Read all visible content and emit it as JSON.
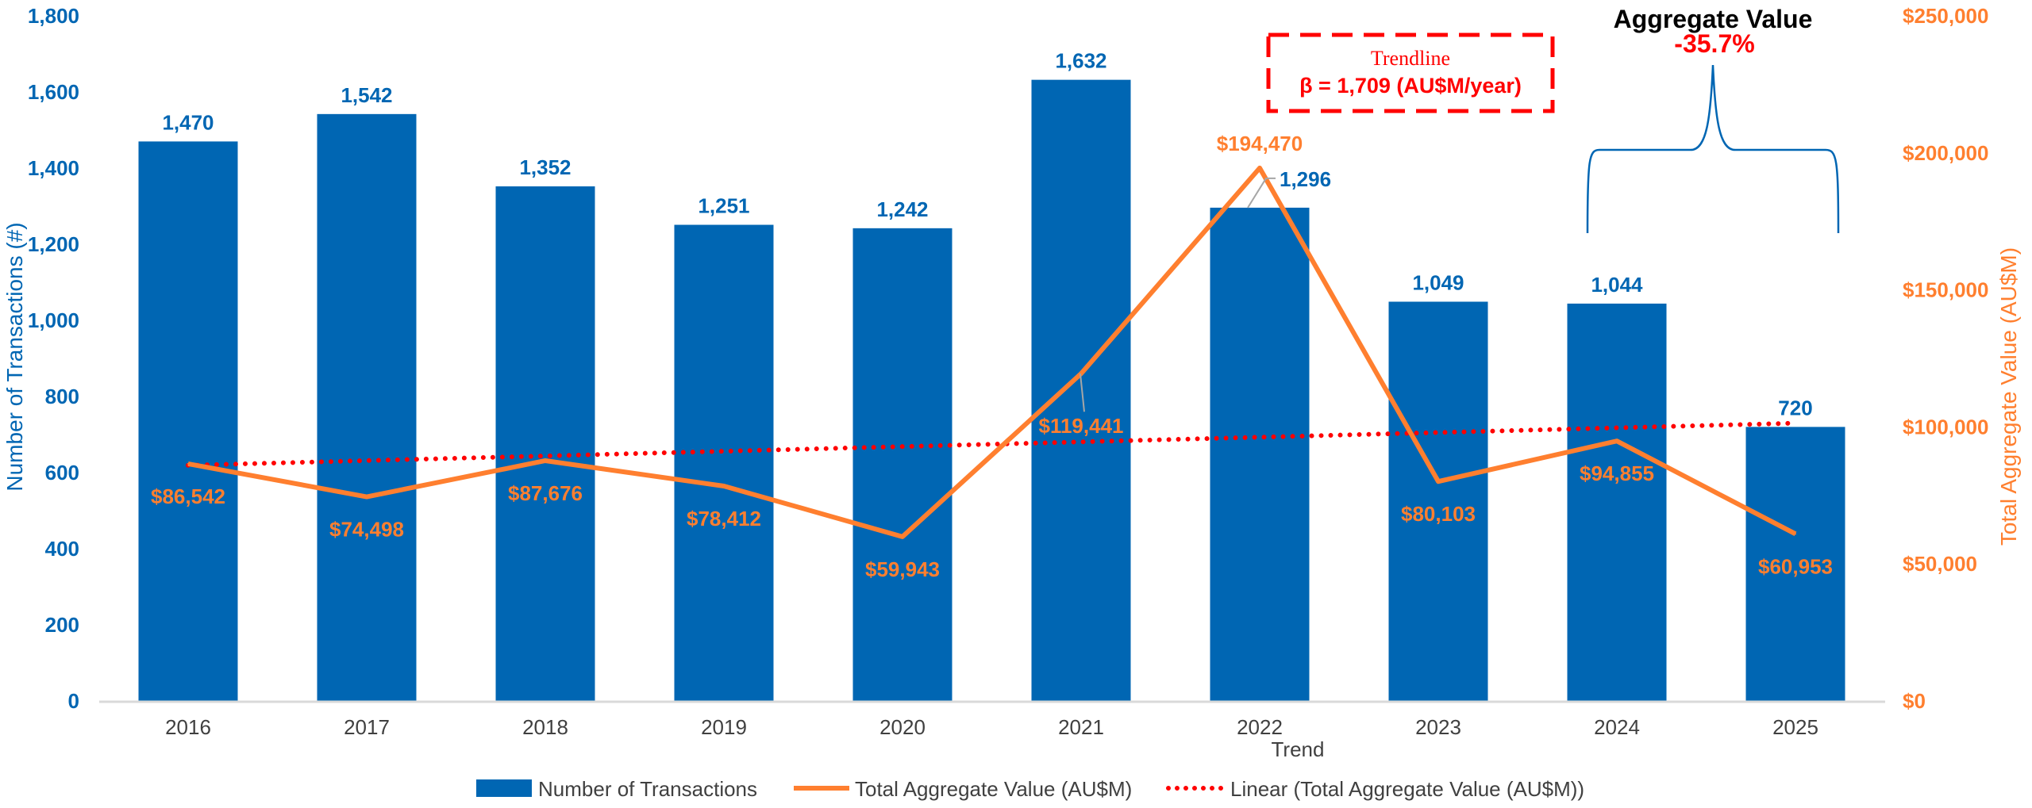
{
  "chart_data": {
    "type": "bar+line",
    "categories": [
      "2016",
      "2017",
      "2018",
      "2019",
      "2020",
      "2021",
      "2022",
      "2023",
      "2024",
      "2025"
    ],
    "series": [
      {
        "name": "Number of Transactions",
        "type": "bar",
        "axis": "left",
        "values": [
          1470,
          1542,
          1352,
          1251,
          1242,
          1632,
          1296,
          1049,
          1044,
          720
        ],
        "labels": [
          "1,470",
          "1,542",
          "1,352",
          "1,251",
          "1,242",
          "1,632",
          "1,296",
          "1,049",
          "1,044",
          "720"
        ]
      },
      {
        "name": "Total Aggregate Value (AU$M)",
        "type": "line",
        "axis": "right",
        "values": [
          86542,
          74498,
          87676,
          78412,
          59943,
          119441,
          194470,
          80103,
          94855,
          60953
        ],
        "labels": [
          "$86,542",
          "$74,498",
          "$87,676",
          "$78,412",
          "$59,943",
          "$119,441",
          "$194,470",
          "$80,103",
          "$94,855",
          "$60,953"
        ]
      },
      {
        "name": "Linear (Total Aggregate Value (AU$M))",
        "type": "trendline",
        "axis": "right",
        "slope": 1709
      }
    ],
    "xlabel": "Trend",
    "ylabel": "Number of Transactions (#)",
    "y2label": "Total Aggregate Value (AU$M)",
    "ylim": [
      0,
      1800
    ],
    "y2lim": [
      0,
      250000
    ],
    "yticks": [
      "0",
      "200",
      "400",
      "600",
      "800",
      "1,000",
      "1,200",
      "1,400",
      "1,600",
      "1,800"
    ],
    "y2ticks": [
      "$0",
      "$50,000",
      "$100,000",
      "$150,000",
      "$200,000",
      "$250,000"
    ],
    "legend_position": "bottom",
    "annotations": {
      "trendline_title": "Trendline",
      "trendline_beta": "β = 1,709 (AU$M/year)",
      "aggregate_title": "Aggregate Value",
      "aggregate_change": "-35.7%"
    },
    "colors": {
      "bar": "#0066b3",
      "line": "#ff7f2f",
      "trend": "#ff0000",
      "aggregate_change": "#ff0000"
    }
  }
}
